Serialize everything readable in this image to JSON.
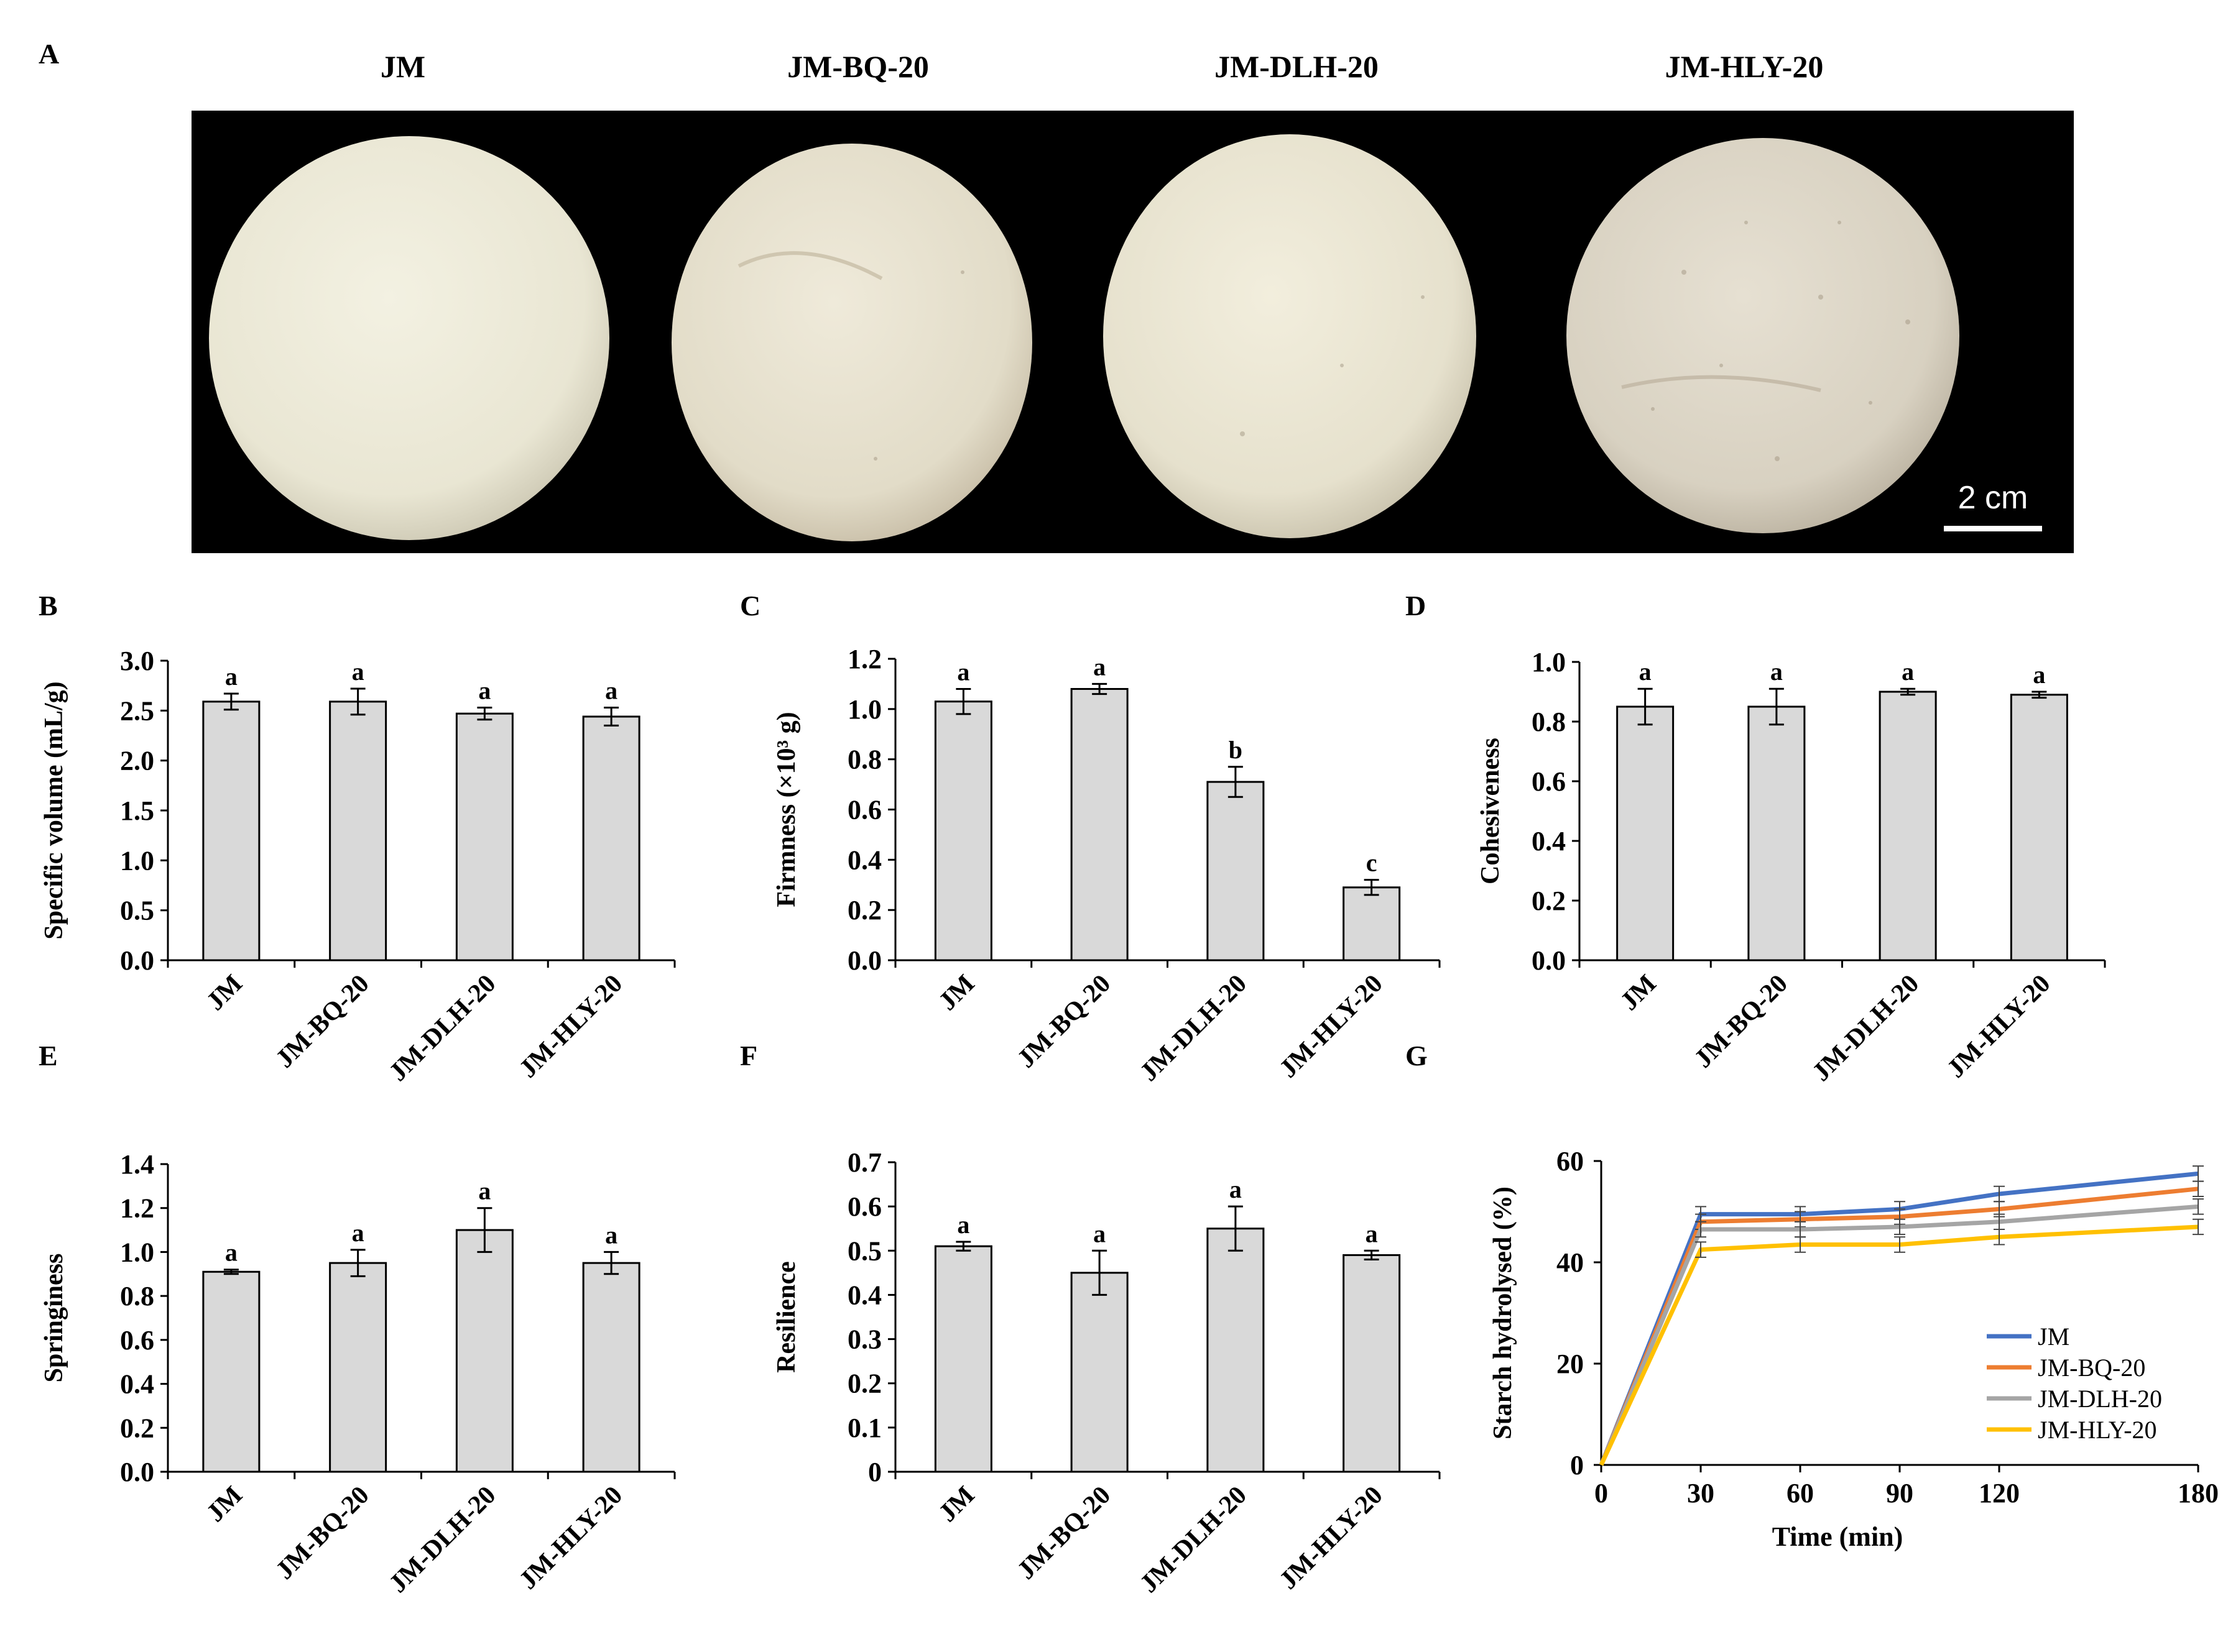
{
  "photo_panel": {
    "letter": "A",
    "labels": [
      "JM",
      "JM-BQ-20",
      "JM-DLH-20",
      "JM-HLY-20"
    ],
    "scale_bar_label": "2 cm",
    "background": "#000000",
    "bun_colors": [
      "#ECEAD9",
      "#E6E1CE",
      "#E9E5D2",
      "#DCD6C7"
    ]
  },
  "chart_data": [
    {
      "panel": "B",
      "type": "bar",
      "categories": [
        "JM",
        "JM-BQ-20",
        "JM-DLH-20",
        "JM-HLY-20"
      ],
      "values": [
        2.59,
        2.59,
        2.47,
        2.44
      ],
      "errors": [
        0.08,
        0.13,
        0.06,
        0.09
      ],
      "letters": [
        "a",
        "a",
        "a",
        "a"
      ],
      "ylabel": "Specific volume (mL/g)",
      "ylim": [
        0,
        3.0
      ],
      "yticks": [
        "0.0",
        "0.5",
        "1.0",
        "1.5",
        "2.0",
        "2.5",
        "3.0"
      ],
      "bar_color": "#D9D9D9"
    },
    {
      "panel": "C",
      "type": "bar",
      "categories": [
        "JM",
        "JM-BQ-20",
        "JM-DLH-20",
        "JM-HLY-20"
      ],
      "values": [
        1.03,
        1.08,
        0.71,
        0.29
      ],
      "errors": [
        0.05,
        0.02,
        0.06,
        0.03
      ],
      "letters": [
        "a",
        "a",
        "b",
        "c"
      ],
      "ylabel": "Firmness (×10³ g)",
      "ylim": [
        0,
        1.2
      ],
      "yticks": [
        "0.0",
        "0.2",
        "0.4",
        "0.6",
        "0.8",
        "1.0",
        "1.2"
      ],
      "bar_color": "#D9D9D9"
    },
    {
      "panel": "D",
      "type": "bar",
      "categories": [
        "JM",
        "JM-BQ-20",
        "JM-DLH-20",
        "JM-HLY-20"
      ],
      "values": [
        0.85,
        0.85,
        0.9,
        0.89
      ],
      "errors": [
        0.06,
        0.06,
        0.01,
        0.01
      ],
      "letters": [
        "a",
        "a",
        "a",
        "a"
      ],
      "ylabel": "Cohesiveness",
      "ylim": [
        0,
        1.0
      ],
      "yticks": [
        "0.0",
        "0.2",
        "0.4",
        "0.6",
        "0.8",
        "1.0"
      ],
      "bar_color": "#D9D9D9"
    },
    {
      "panel": "E",
      "type": "bar",
      "categories": [
        "JM",
        "JM-BQ-20",
        "JM-DLH-20",
        "JM-HLY-20"
      ],
      "values": [
        0.91,
        0.95,
        1.1,
        0.95
      ],
      "errors": [
        0.01,
        0.06,
        0.1,
        0.05
      ],
      "letters": [
        "a",
        "a",
        "a",
        "a"
      ],
      "ylabel": "Springiness",
      "ylim": [
        0,
        1.4
      ],
      "yticks": [
        "0.0",
        "0.2",
        "0.4",
        "0.6",
        "0.8",
        "1.0",
        "1.2",
        "1.4"
      ],
      "bar_color": "#D9D9D9"
    },
    {
      "panel": "F",
      "type": "bar",
      "categories": [
        "JM",
        "JM-BQ-20",
        "JM-DLH-20",
        "JM-HLY-20"
      ],
      "values": [
        0.51,
        0.45,
        0.55,
        0.49
      ],
      "errors": [
        0.01,
        0.05,
        0.05,
        0.01
      ],
      "letters": [
        "a",
        "a",
        "a",
        "a"
      ],
      "ylabel": "Resilience",
      "ylim": [
        0,
        0.7
      ],
      "yticks": [
        "0",
        "0.1",
        "0.2",
        "0.3",
        "0.4",
        "0.5",
        "0.6",
        "0.7"
      ],
      "bar_color": "#D9D9D9"
    },
    {
      "panel": "G",
      "type": "line",
      "x": [
        0,
        30,
        60,
        90,
        120,
        180
      ],
      "xticks": [
        "0",
        "30",
        "60",
        "90",
        "120",
        "180"
      ],
      "xlabel": "Time (min)",
      "ylabel": "Starch hydrolysed (%)",
      "ylim": [
        0,
        60
      ],
      "yticks": [
        "0",
        "20",
        "40",
        "60"
      ],
      "legend_position": "bottom-right",
      "series": [
        {
          "name": "JM",
          "color": "#4472C4",
          "values": [
            0,
            49.5,
            49.5,
            50.5,
            53.5,
            57.5
          ],
          "errors": [
            0,
            1.5,
            1.5,
            1.5,
            1.5,
            1.5
          ]
        },
        {
          "name": "JM-BQ-20",
          "color": "#ED7D31",
          "values": [
            0,
            48,
            48.5,
            49,
            50.5,
            54.5
          ],
          "errors": [
            0,
            1.5,
            1.5,
            1.5,
            1.5,
            1.5
          ]
        },
        {
          "name": "JM-DLH-20",
          "color": "#A5A5A5",
          "values": [
            0,
            46.5,
            46.5,
            47,
            48,
            51
          ],
          "errors": [
            0,
            1.5,
            1.5,
            1.5,
            1.5,
            1.5
          ]
        },
        {
          "name": "JM-HLY-20",
          "color": "#FFC000",
          "values": [
            0,
            42.5,
            43.5,
            43.5,
            45,
            47
          ],
          "errors": [
            0,
            1.5,
            1.5,
            1.5,
            1.5,
            1.5
          ]
        }
      ]
    }
  ]
}
